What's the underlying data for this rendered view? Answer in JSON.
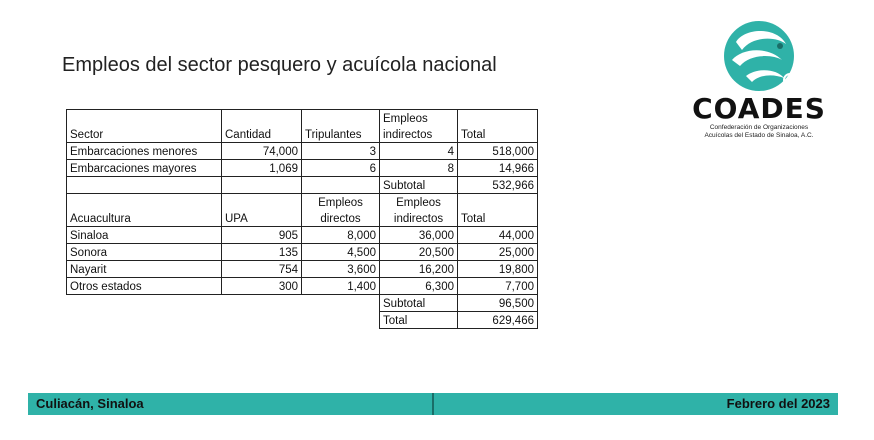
{
  "title": "Empleos del sector pesquero y acuícola nacional",
  "logo": {
    "name": "COADES",
    "subtitle_1": "Confederación de Organizaciones",
    "subtitle_2": "Acuícolas del Estado de Sinaloa, A.C."
  },
  "table": {
    "pesca_header": {
      "sector": "Sector",
      "cantidad": "Cantidad",
      "tripulantes": "Tripulantes",
      "empleos": "Empleos",
      "indirectos": "indirectos",
      "total": "Total"
    },
    "pesca_rows": [
      {
        "name": "Embarcaciones menores",
        "cantidad": "74,000",
        "tripulantes": "3",
        "indirectos": "4",
        "total": "518,000"
      },
      {
        "name": "Embarcaciones mayores",
        "cantidad": "1,069",
        "tripulantes": "6",
        "indirectos": "8",
        "total": "14,966"
      }
    ],
    "pesca_subtotal": {
      "label": "Subtotal",
      "value": "532,966"
    },
    "acua_header": {
      "sector": "Acuacultura",
      "upa": "UPA",
      "empleos_d1": "Empleos",
      "empleos_d2": "directos",
      "empleos_i1": "Empleos",
      "empleos_i2": "indirectos",
      "total": "Total"
    },
    "acua_rows": [
      {
        "name": "Sinaloa",
        "upa": "905",
        "directos": "8,000",
        "indirectos": "36,000",
        "total": "44,000"
      },
      {
        "name": "Sonora",
        "upa": "135",
        "directos": "4,500",
        "indirectos": "20,500",
        "total": "25,000"
      },
      {
        "name": "Nayarit",
        "upa": "754",
        "directos": "3,600",
        "indirectos": "16,200",
        "total": "19,800"
      },
      {
        "name": "Otros estados",
        "upa": "300",
        "directos": "1,400",
        "indirectos": "6,300",
        "total": "7,700"
      }
    ],
    "acua_subtotal": {
      "label": "Subtotal",
      "value": "96,500"
    },
    "grand_total": {
      "label": "Total",
      "value": "629,466"
    }
  },
  "footer": {
    "location": "Culiacán, Sinaloa",
    "date": "Febrero del 2023"
  },
  "colors": {
    "footer_bg": "#2fb2a8",
    "logo_teal": "#2fb2a8"
  }
}
